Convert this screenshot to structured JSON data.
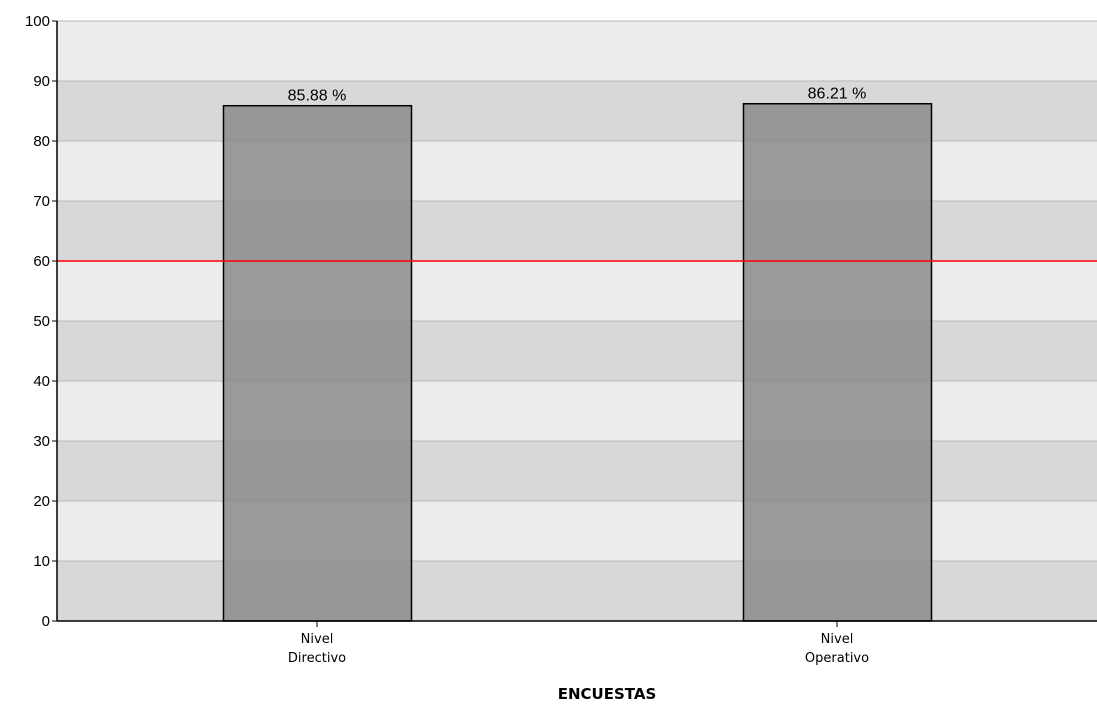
{
  "chart_data": {
    "type": "bar",
    "categories": [
      [
        "Nivel",
        "Directivo"
      ],
      [
        "Nivel",
        "Operativo"
      ]
    ],
    "values": [
      85.88,
      86.21
    ],
    "data_labels": [
      "85.88 %",
      "86.21 %"
    ],
    "xlabel": "ENCUESTAS",
    "ylabel": "",
    "ylim": [
      0,
      100
    ],
    "yticks": [
      0,
      10,
      20,
      30,
      40,
      50,
      60,
      70,
      80,
      90,
      100
    ],
    "reference_line": {
      "value": 60,
      "color": "#ff0000"
    },
    "grid": true,
    "legend": "none",
    "colors": {
      "bar_fill": "#8c8c8c",
      "bar_stroke": "#000000",
      "band_dark": "#d8d8d8",
      "band_light": "#ececec",
      "gridline": "#b8b8b8"
    }
  }
}
